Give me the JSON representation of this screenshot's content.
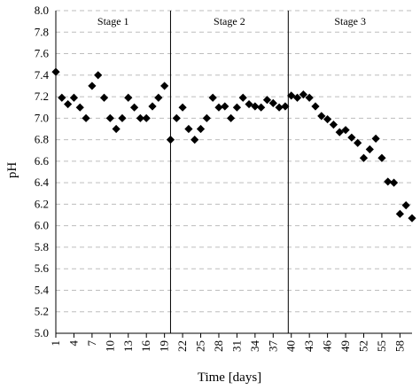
{
  "chart_data": {
    "type": "scatter",
    "title": "",
    "xlabel": "Time [days]",
    "ylabel": "pH",
    "xlim": [
      1,
      60
    ],
    "ylim": [
      5.0,
      8.0
    ],
    "ytick_step": 0.2,
    "xticks": [
      1,
      4,
      7,
      10,
      13,
      16,
      19,
      22,
      25,
      28,
      31,
      34,
      37,
      40,
      43,
      46,
      49,
      52,
      55,
      58
    ],
    "grid": "horizontal-dashed",
    "legend": "none",
    "marker": "diamond",
    "marker_color": "#000000",
    "stages": [
      {
        "label": "Stage 1",
        "start": 1,
        "end": 20
      },
      {
        "label": "Stage 2",
        "start": 20,
        "end": 39.5
      },
      {
        "label": "Stage 3",
        "start": 39.5,
        "end": 60
      }
    ],
    "x": [
      1,
      2,
      3,
      4,
      5,
      6,
      7,
      8,
      9,
      10,
      11,
      12,
      13,
      14,
      15,
      16,
      17,
      18,
      19,
      20,
      21,
      22,
      23,
      24,
      25,
      26,
      27,
      28,
      29,
      30,
      31,
      32,
      33,
      34,
      35,
      36,
      37,
      38,
      39,
      40,
      41,
      42,
      43,
      44,
      45,
      46,
      47,
      48,
      49,
      50,
      51,
      52,
      53,
      54,
      55,
      56,
      57,
      58,
      59,
      60
    ],
    "y": [
      7.43,
      7.19,
      7.13,
      7.19,
      7.1,
      7.0,
      7.3,
      7.4,
      7.19,
      7.0,
      6.9,
      7.0,
      7.19,
      7.1,
      7.0,
      7.0,
      7.11,
      7.19,
      7.3,
      6.8,
      7.0,
      7.1,
      6.9,
      6.8,
      6.9,
      7.0,
      7.19,
      7.1,
      7.11,
      7.0,
      7.1,
      7.19,
      7.13,
      7.11,
      7.1,
      7.17,
      7.14,
      7.1,
      7.11,
      7.21,
      7.19,
      7.22,
      7.19,
      7.11,
      7.02,
      6.99,
      6.94,
      6.87,
      6.89,
      6.82,
      6.77,
      6.63,
      6.71,
      6.81,
      6.63,
      6.41,
      6.4,
      6.11,
      6.19,
      6.07
    ]
  }
}
